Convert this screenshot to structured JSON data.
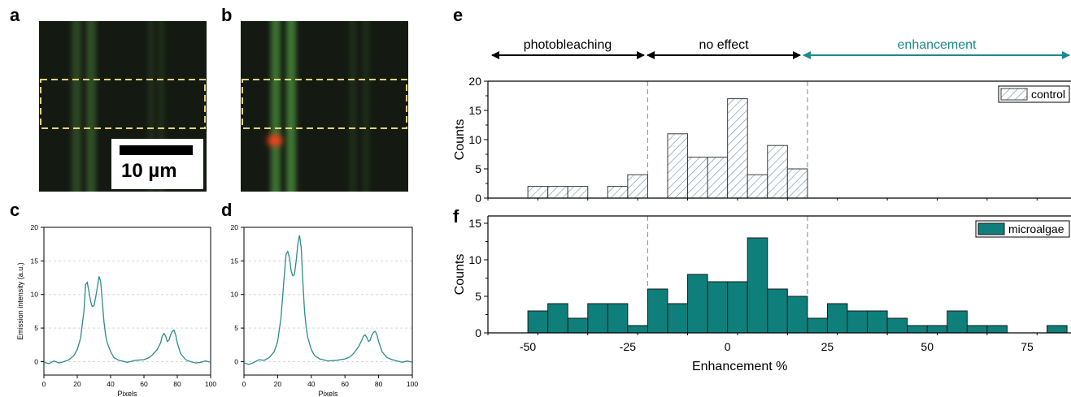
{
  "panels": {
    "a": "a",
    "b": "b",
    "c": "c",
    "d": "d",
    "e": "e",
    "f": "f"
  },
  "scale_bar": {
    "label": "10 µm"
  },
  "regions": {
    "photobleaching": "photobleaching",
    "no_effect": "no effect",
    "enhancement": "enhancement"
  },
  "colors": {
    "profile_line": "#2e8b8b",
    "teal": "#0e7f7a",
    "arrow_black": "#000000",
    "arrow_teal": "#1b8a8a",
    "dashed_box": "#e8d27a"
  },
  "chart_data": [
    {
      "id": "c",
      "type": "line",
      "xlabel": "Pixels",
      "ylabel": "Emission intensity (a.u.)",
      "xlim": [
        0,
        100
      ],
      "ylim": [
        -2,
        20
      ],
      "xticks": [
        0,
        20,
        40,
        60,
        80,
        100
      ],
      "yticks": [
        0,
        5,
        10,
        15,
        20
      ],
      "grid": true,
      "series": [
        {
          "x": [
            0,
            3,
            6,
            9,
            12,
            15,
            18,
            20,
            22,
            24,
            25,
            26,
            27,
            28,
            29,
            30,
            31,
            32,
            33,
            34,
            35,
            36,
            37,
            38,
            40,
            42,
            45,
            50,
            55,
            60,
            63,
            65,
            68,
            70,
            71,
            72,
            73,
            74,
            75,
            76,
            77,
            78,
            79,
            80,
            82,
            85,
            88,
            91,
            94,
            97,
            100
          ],
          "values": [
            -0.1,
            -0.3,
            0.1,
            -0.2,
            0.0,
            0.3,
            0.9,
            1.8,
            3.5,
            7.5,
            11.5,
            11.8,
            10.5,
            9.0,
            8.2,
            8.3,
            9.5,
            11.0,
            12.7,
            12.0,
            9.0,
            6.0,
            4.0,
            2.8,
            1.5,
            0.6,
            0.2,
            -0.1,
            0.2,
            0.3,
            0.6,
            1.0,
            1.8,
            2.8,
            3.8,
            4.2,
            3.8,
            3.0,
            3.2,
            4.0,
            4.5,
            4.7,
            4.0,
            2.8,
            1.2,
            0.3,
            0.0,
            -0.2,
            -0.1,
            0.1,
            -0.1
          ]
        }
      ]
    },
    {
      "id": "d",
      "type": "line",
      "xlabel": "Pixels",
      "xlim": [
        0,
        100
      ],
      "ylim": [
        -2,
        20
      ],
      "xticks": [
        0,
        20,
        40,
        60,
        80,
        100
      ],
      "yticks": [
        0,
        5,
        10,
        15,
        20
      ],
      "grid": true,
      "series": [
        {
          "x": [
            0,
            3,
            6,
            9,
            12,
            15,
            18,
            20,
            22,
            24,
            25,
            26,
            27,
            28,
            29,
            30,
            31,
            32,
            33,
            34,
            35,
            36,
            37,
            38,
            40,
            42,
            45,
            50,
            55,
            60,
            63,
            65,
            68,
            70,
            71,
            72,
            73,
            74,
            75,
            76,
            77,
            78,
            79,
            80,
            82,
            85,
            88,
            91,
            94,
            97,
            100
          ],
          "values": [
            -0.2,
            -0.4,
            -0.1,
            0.3,
            0.2,
            0.6,
            1.5,
            3.0,
            6.5,
            13.0,
            16.0,
            16.4,
            15.5,
            13.5,
            12.8,
            13.0,
            15.0,
            17.5,
            18.8,
            17.0,
            12.0,
            7.5,
            5.0,
            3.5,
            1.8,
            0.9,
            0.4,
            0.1,
            0.2,
            0.4,
            0.7,
            1.2,
            2.2,
            3.2,
            3.8,
            4.0,
            3.6,
            3.0,
            3.2,
            4.0,
            4.4,
            4.5,
            4.0,
            3.0,
            1.5,
            0.6,
            0.3,
            0.1,
            -0.1,
            0.1,
            -0.1
          ]
        }
      ]
    },
    {
      "id": "e",
      "type": "bar",
      "ylabel": "Counts",
      "xlim": [
        -60,
        86
      ],
      "ylim": [
        0,
        20
      ],
      "yticks": [
        0,
        5,
        10,
        15,
        20
      ],
      "legend": "control",
      "legend_position": "top-right",
      "bin_width": 5,
      "bin_left_edges": [
        -50,
        -45,
        -40,
        -30,
        -25,
        -15,
        -10,
        -5,
        0,
        5,
        10,
        15
      ],
      "values": [
        2,
        2,
        2,
        2,
        4,
        11,
        7,
        7,
        17,
        4,
        9,
        5
      ]
    },
    {
      "id": "f",
      "type": "bar",
      "ylabel": "Counts",
      "xlabel": "Enhancement %",
      "xlim": [
        -60,
        86
      ],
      "ylim": [
        0,
        16
      ],
      "yticks": [
        0,
        5,
        10,
        15
      ],
      "xticks": [
        -50,
        -25,
        0,
        25,
        50,
        75
      ],
      "legend": "microalgae",
      "legend_position": "top-right",
      "bin_width": 5,
      "bin_left_edges": [
        -50,
        -45,
        -40,
        -35,
        -30,
        -25,
        -20,
        -15,
        -10,
        -5,
        0,
        5,
        10,
        15,
        20,
        25,
        30,
        35,
        40,
        45,
        50,
        55,
        60,
        65,
        80
      ],
      "values": [
        3,
        4,
        2,
        4,
        4,
        1,
        6,
        4,
        8,
        7,
        7,
        13,
        6,
        5,
        2,
        4,
        3,
        3,
        2,
        1,
        1,
        3,
        1,
        1,
        1
      ]
    }
  ]
}
